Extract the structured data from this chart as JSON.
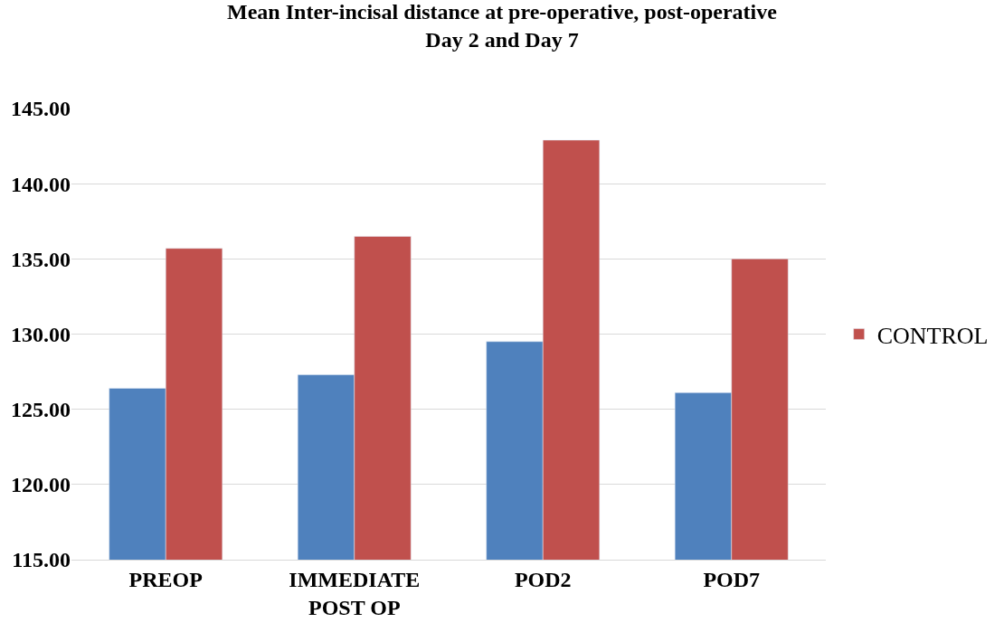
{
  "chart_data": {
    "type": "bar",
    "title": "Mean Inter-incisal distance at pre-operative, post-operative\nDay 2 and Day 7",
    "categories": [
      "PREOP",
      "IMMEDIATE\nPOST OP",
      "POD2",
      "POD7"
    ],
    "series": [
      {
        "color": "#4f81bd",
        "values": [
          126.4,
          127.3,
          129.5,
          126.1
        ]
      },
      {
        "name": "CONTROL",
        "color": "#c0504d",
        "values": [
          135.7,
          136.5,
          142.9,
          135.0
        ]
      }
    ],
    "ylim": [
      115,
      145
    ],
    "yticks": [
      {
        "value": 115,
        "label": "115.00"
      },
      {
        "value": 120,
        "label": "120.00"
      },
      {
        "value": 125,
        "label": "125.00"
      },
      {
        "value": 130,
        "label": "130.00"
      },
      {
        "value": 135,
        "label": "135.00"
      },
      {
        "value": 140,
        "label": "140.00"
      },
      {
        "value": 145,
        "label": "145.00"
      }
    ],
    "grid": "y",
    "legend": "right"
  }
}
